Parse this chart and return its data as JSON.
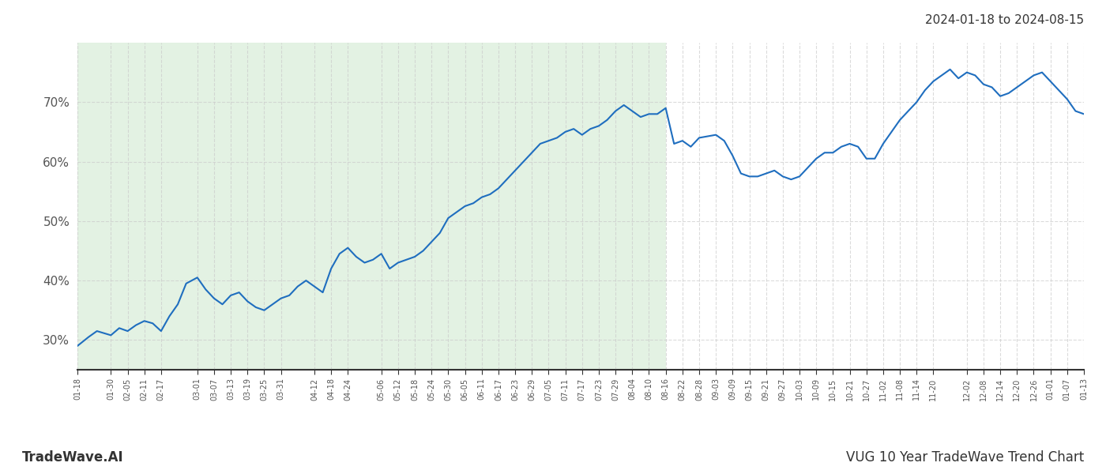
{
  "title_right": "2024-01-18 to 2024-08-15",
  "footer_left": "TradeWave.AI",
  "footer_right": "VUG 10 Year TradeWave Trend Chart",
  "line_color": "#1f6ebf",
  "line_width": 1.5,
  "bg_color": "#ffffff",
  "shaded_region_color": "#c8e6c9",
  "shaded_region_alpha": 0.5,
  "shaded_start": "2024-01-18",
  "shaded_end": "2024-08-16",
  "ylim": [
    25,
    80
  ],
  "yticks": [
    30,
    40,
    50,
    60,
    70
  ],
  "grid_color": "#cccccc",
  "grid_style": "--",
  "grid_alpha": 0.7,
  "x_start": "2024-01-18",
  "x_end": "2025-01-13",
  "tick_dates": [
    "2024-01-18",
    "2024-01-30",
    "2024-02-05",
    "2024-02-11",
    "2024-02-17",
    "2024-03-01",
    "2024-03-07",
    "2024-03-13",
    "2024-03-19",
    "2024-03-25",
    "2024-03-31",
    "2024-04-12",
    "2024-04-18",
    "2024-04-24",
    "2024-05-06",
    "2024-05-12",
    "2024-05-18",
    "2024-05-24",
    "2024-05-30",
    "2024-06-05",
    "2024-06-11",
    "2024-06-17",
    "2024-06-23",
    "2024-06-29",
    "2024-07-05",
    "2024-07-11",
    "2024-07-17",
    "2024-07-23",
    "2024-07-29",
    "2024-08-04",
    "2024-08-10",
    "2024-08-16",
    "2024-08-22",
    "2024-08-28",
    "2024-09-03",
    "2024-09-09",
    "2024-09-15",
    "2024-09-21",
    "2024-09-27",
    "2024-10-03",
    "2024-10-09",
    "2024-10-15",
    "2024-10-21",
    "2024-10-27",
    "2024-11-02",
    "2024-11-08",
    "2024-11-14",
    "2024-11-20",
    "2024-12-02",
    "2024-12-08",
    "2024-12-14",
    "2024-12-20",
    "2024-12-26",
    "2025-01-01",
    "2025-01-07",
    "2025-01-13"
  ],
  "tick_labels": [
    "01-18",
    "01-30",
    "02-05",
    "02-11",
    "02-17",
    "03-01",
    "03-07",
    "03-13",
    "03-19",
    "03-25",
    "03-31",
    "04-12",
    "04-18",
    "04-24",
    "05-06",
    "05-12",
    "05-18",
    "05-24",
    "05-30",
    "06-05",
    "06-11",
    "06-17",
    "06-23",
    "06-29",
    "07-05",
    "07-11",
    "07-17",
    "07-23",
    "07-29",
    "08-04",
    "08-10",
    "08-16",
    "08-22",
    "08-28",
    "09-03",
    "09-09",
    "09-15",
    "09-21",
    "09-27",
    "10-03",
    "10-09",
    "10-15",
    "10-21",
    "10-27",
    "11-02",
    "11-08",
    "11-14",
    "11-20",
    "12-02",
    "12-08",
    "12-14",
    "12-20",
    "12-26",
    "01-01",
    "01-07",
    "01-13"
  ],
  "series": {
    "dates": [
      "2024-01-18",
      "2024-01-22",
      "2024-01-25",
      "2024-01-30",
      "2024-02-02",
      "2024-02-05",
      "2024-02-08",
      "2024-02-11",
      "2024-02-14",
      "2024-02-17",
      "2024-02-20",
      "2024-02-23",
      "2024-02-26",
      "2024-03-01",
      "2024-03-04",
      "2024-03-07",
      "2024-03-10",
      "2024-03-13",
      "2024-03-16",
      "2024-03-19",
      "2024-03-22",
      "2024-03-25",
      "2024-03-28",
      "2024-03-31",
      "2024-04-03",
      "2024-04-06",
      "2024-04-09",
      "2024-04-12",
      "2024-04-15",
      "2024-04-18",
      "2024-04-21",
      "2024-04-24",
      "2024-04-27",
      "2024-04-30",
      "2024-05-03",
      "2024-05-06",
      "2024-05-09",
      "2024-05-12",
      "2024-05-15",
      "2024-05-18",
      "2024-05-21",
      "2024-05-24",
      "2024-05-27",
      "2024-05-30",
      "2024-06-02",
      "2024-06-05",
      "2024-06-08",
      "2024-06-11",
      "2024-06-14",
      "2024-06-17",
      "2024-06-20",
      "2024-06-23",
      "2024-06-26",
      "2024-06-29",
      "2024-07-02",
      "2024-07-05",
      "2024-07-08",
      "2024-07-11",
      "2024-07-14",
      "2024-07-17",
      "2024-07-20",
      "2024-07-23",
      "2024-07-26",
      "2024-07-29",
      "2024-08-01",
      "2024-08-04",
      "2024-08-07",
      "2024-08-10",
      "2024-08-13",
      "2024-08-16",
      "2024-08-19",
      "2024-08-22",
      "2024-08-25",
      "2024-08-28",
      "2024-09-03",
      "2024-09-06",
      "2024-09-09",
      "2024-09-12",
      "2024-09-15",
      "2024-09-18",
      "2024-09-21",
      "2024-09-24",
      "2024-09-27",
      "2024-09-30",
      "2024-10-03",
      "2024-10-06",
      "2024-10-09",
      "2024-10-12",
      "2024-10-15",
      "2024-10-18",
      "2024-10-21",
      "2024-10-24",
      "2024-10-27",
      "2024-10-30",
      "2024-11-02",
      "2024-11-05",
      "2024-11-08",
      "2024-11-11",
      "2024-11-14",
      "2024-11-17",
      "2024-11-20",
      "2024-11-23",
      "2024-11-26",
      "2024-11-29",
      "2024-12-02",
      "2024-12-05",
      "2024-12-08",
      "2024-12-11",
      "2024-12-14",
      "2024-12-17",
      "2024-12-20",
      "2024-12-23",
      "2024-12-26",
      "2024-12-29",
      "2025-01-01",
      "2025-01-04",
      "2025-01-07",
      "2025-01-10",
      "2025-01-13"
    ],
    "values": [
      29.0,
      30.5,
      31.5,
      30.8,
      32.0,
      31.5,
      32.5,
      33.2,
      32.8,
      31.5,
      34.0,
      36.0,
      39.5,
      40.5,
      38.5,
      37.0,
      36.0,
      37.5,
      38.0,
      36.5,
      35.5,
      35.0,
      36.0,
      37.0,
      37.5,
      39.0,
      40.0,
      39.0,
      38.0,
      42.0,
      44.5,
      45.5,
      44.0,
      43.0,
      43.5,
      44.5,
      42.0,
      43.0,
      43.5,
      44.0,
      45.0,
      46.5,
      48.0,
      50.5,
      51.5,
      52.5,
      53.0,
      54.0,
      54.5,
      55.5,
      57.0,
      58.5,
      60.0,
      61.5,
      63.0,
      63.5,
      64.0,
      65.0,
      65.5,
      64.5,
      65.5,
      66.0,
      67.0,
      68.5,
      69.5,
      68.5,
      67.5,
      68.0,
      68.0,
      69.0,
      63.0,
      63.5,
      62.5,
      64.0,
      64.5,
      63.5,
      61.0,
      58.0,
      57.5,
      57.5,
      58.0,
      58.5,
      57.5,
      57.0,
      57.5,
      59.0,
      60.5,
      61.5,
      61.5,
      62.5,
      63.0,
      62.5,
      60.5,
      60.5,
      63.0,
      65.0,
      67.0,
      68.5,
      70.0,
      72.0,
      73.5,
      74.5,
      75.5,
      74.0,
      75.0,
      74.5,
      73.0,
      72.5,
      71.0,
      71.5,
      72.5,
      73.5,
      74.5,
      75.0,
      73.5,
      72.0,
      70.5,
      68.5,
      68.0
    ]
  }
}
